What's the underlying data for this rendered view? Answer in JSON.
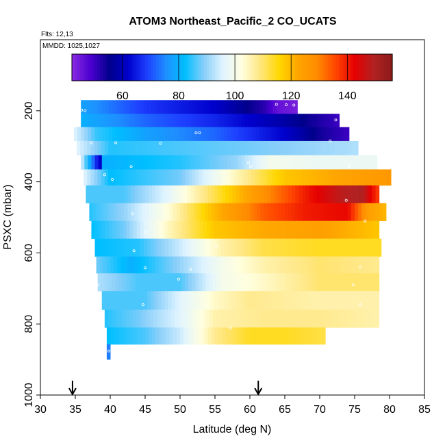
{
  "chart_data": {
    "type": "heatmap",
    "title": "ATOM3 Northeast_Pacific_2 CO_UCATS",
    "flights_label": "Flts: 12,13",
    "dates_label": "MMDD: 1025,1027",
    "xlabel": "Latitude (deg N)",
    "ylabel": "PSXC (mbar)",
    "xlim": [
      30,
      85
    ],
    "ylim": [
      1000,
      0
    ],
    "x_ticks": [
      30,
      35,
      40,
      45,
      50,
      55,
      60,
      65,
      70,
      75,
      80,
      85
    ],
    "y_ticks": [
      200,
      400,
      600,
      800,
      1000
    ],
    "colorbar": {
      "min": 42,
      "max": 156,
      "ticks": [
        60,
        80,
        100,
        120,
        140
      ],
      "colors": [
        "#8a2be2",
        "#4b00d0",
        "#00008b",
        "#0000cd",
        "#1e40ff",
        "#1e90ff",
        "#00bfff",
        "#87cefa",
        "#e0f4ff",
        "#ffffe0",
        "#ffe680",
        "#ffd700",
        "#ffa500",
        "#ff8c00",
        "#ff4500",
        "#e60000",
        "#b22222",
        "#8b1a1a"
      ]
    },
    "markers": [
      34.6,
      61.2
    ],
    "rows": [
      {
        "p": 190,
        "x0": 35.8,
        "x1": 66.8,
        "knots": [
          [
            35.8,
            78
          ],
          [
            45,
            68
          ],
          [
            55,
            62
          ],
          [
            62,
            52
          ],
          [
            64,
            46
          ],
          [
            66.8,
            44
          ]
        ]
      },
      {
        "p": 227,
        "x0": 35.8,
        "x1": 72.8,
        "knots": [
          [
            35.8,
            80
          ],
          [
            45,
            72
          ],
          [
            55,
            66
          ],
          [
            65,
            58
          ],
          [
            72.8,
            50
          ]
        ]
      },
      {
        "p": 265,
        "x0": 34.8,
        "x1": 74.2,
        "knots": [
          [
            34.8,
            96
          ],
          [
            38,
            85
          ],
          [
            45,
            78
          ],
          [
            55,
            72
          ],
          [
            65,
            62
          ],
          [
            70,
            54
          ],
          [
            74.2,
            50
          ]
        ]
      },
      {
        "p": 305,
        "x0": 35.2,
        "x1": 75.5,
        "knots": [
          [
            35.2,
            96
          ],
          [
            40,
            84
          ],
          [
            50,
            86
          ],
          [
            60,
            88
          ],
          [
            68,
            90
          ],
          [
            75.5,
            92
          ]
        ]
      },
      {
        "p": 345,
        "x0": 35.8,
        "x1": 78.2,
        "knots": [
          [
            35.8,
            96
          ],
          [
            38.5,
            60
          ],
          [
            39,
            80
          ],
          [
            50,
            84
          ],
          [
            58,
            90
          ],
          [
            63,
            100
          ],
          [
            70,
            98
          ],
          [
            78.2,
            98
          ]
        ]
      },
      {
        "p": 385,
        "x0": 36.2,
        "x1": 80.2,
        "knots": [
          [
            36.2,
            96
          ],
          [
            40,
            82
          ],
          [
            50,
            88
          ],
          [
            58,
            105
          ],
          [
            65,
            118
          ],
          [
            75,
            124
          ],
          [
            80.2,
            126
          ]
        ]
      },
      {
        "p": 435,
        "x0": 36.5,
        "x1": 78.5,
        "knots": [
          [
            36.5,
            86
          ],
          [
            42,
            86
          ],
          [
            48,
            96
          ],
          [
            55,
            112
          ],
          [
            62,
            128
          ],
          [
            68,
            140
          ],
          [
            73,
            148
          ],
          [
            76,
            150
          ],
          [
            78.5,
            136
          ]
        ]
      },
      {
        "p": 485,
        "x0": 37.0,
        "x1": 79.5,
        "knots": [
          [
            37,
            84
          ],
          [
            42,
            90
          ],
          [
            48,
            102
          ],
          [
            55,
            120
          ],
          [
            62,
            134
          ],
          [
            68,
            140
          ],
          [
            74,
            142
          ],
          [
            77,
            124
          ],
          [
            79.5,
            120
          ]
        ]
      },
      {
        "p": 535,
        "x0": 37.3,
        "x1": 78.5,
        "knots": [
          [
            37.3,
            82
          ],
          [
            42,
            88
          ],
          [
            48,
            104
          ],
          [
            55,
            118
          ],
          [
            62,
            122
          ],
          [
            70,
            124
          ],
          [
            78.5,
            118
          ]
        ]
      },
      {
        "p": 585,
        "x0": 37.8,
        "x1": 78.8,
        "knots": [
          [
            37.8,
            82
          ],
          [
            44,
            84
          ],
          [
            50,
            94
          ],
          [
            56,
            106
          ],
          [
            62,
            112
          ],
          [
            70,
            114
          ],
          [
            78.8,
            114
          ]
        ]
      },
      {
        "p": 635,
        "x0": 38.0,
        "x1": 78.5,
        "knots": [
          [
            38,
            88
          ],
          [
            43,
            80
          ],
          [
            50,
            90
          ],
          [
            56,
            100
          ],
          [
            62,
            106
          ],
          [
            70,
            110
          ],
          [
            78.5,
            108
          ]
        ]
      },
      {
        "p": 680,
        "x0": 38.2,
        "x1": 78.5,
        "knots": [
          [
            38.2,
            92
          ],
          [
            44,
            86
          ],
          [
            50,
            86
          ],
          [
            56,
            100
          ],
          [
            62,
            104
          ],
          [
            70,
            110
          ],
          [
            78.5,
            110
          ]
        ]
      },
      {
        "p": 735,
        "x0": 38.8,
        "x1": 78.5,
        "knots": [
          [
            38.8,
            86
          ],
          [
            45,
            86
          ],
          [
            50,
            96
          ],
          [
            55,
            104
          ],
          [
            60,
            108
          ],
          [
            70,
            106
          ],
          [
            78.5,
            106
          ]
        ]
      },
      {
        "p": 785,
        "x0": 39.2,
        "x1": 78.5,
        "knots": [
          [
            39.2,
            84
          ],
          [
            44,
            88
          ],
          [
            50,
            96
          ],
          [
            55,
            106
          ],
          [
            62,
            108
          ],
          [
            70,
            108
          ],
          [
            78.5,
            106
          ]
        ]
      },
      {
        "p": 835,
        "x0": 39.5,
        "x1": 70.8,
        "knots": [
          [
            39.5,
            82
          ],
          [
            45,
            86
          ],
          [
            50,
            94
          ],
          [
            55,
            108
          ],
          [
            60,
            114
          ],
          [
            65,
            114
          ],
          [
            70.8,
            112
          ]
        ]
      },
      {
        "p": 880,
        "x0": 39.5,
        "x1": 40.0,
        "knots": [
          [
            39.5,
            74
          ],
          [
            40.0,
            74
          ]
        ]
      }
    ],
    "samples": [
      [
        35.9,
        198
      ],
      [
        36.4,
        200
      ],
      [
        63.8,
        182
      ],
      [
        65.2,
        183
      ],
      [
        66.3,
        184
      ],
      [
        72.3,
        226
      ],
      [
        37.3,
        290
      ],
      [
        40.8,
        290
      ],
      [
        47.2,
        292
      ],
      [
        52.3,
        262
      ],
      [
        52.8,
        262
      ],
      [
        71.5,
        285
      ],
      [
        43.0,
        357
      ],
      [
        59.8,
        346
      ],
      [
        60.1,
        357
      ],
      [
        74.2,
        357
      ],
      [
        39.2,
        380
      ],
      [
        40.3,
        393
      ],
      [
        73.8,
        452
      ],
      [
        79.8,
        452
      ],
      [
        43.2,
        490
      ],
      [
        76.5,
        510
      ],
      [
        45.0,
        543
      ],
      [
        43.4,
        594
      ],
      [
        55.2,
        580
      ],
      [
        45.0,
        642
      ],
      [
        51.5,
        647
      ],
      [
        49.8,
        674
      ],
      [
        75.8,
        640
      ],
      [
        38.2,
        690
      ],
      [
        74.8,
        690
      ],
      [
        44.7,
        746
      ],
      [
        75.8,
        746
      ],
      [
        57.2,
        812
      ],
      [
        39.8,
        876
      ]
    ]
  }
}
